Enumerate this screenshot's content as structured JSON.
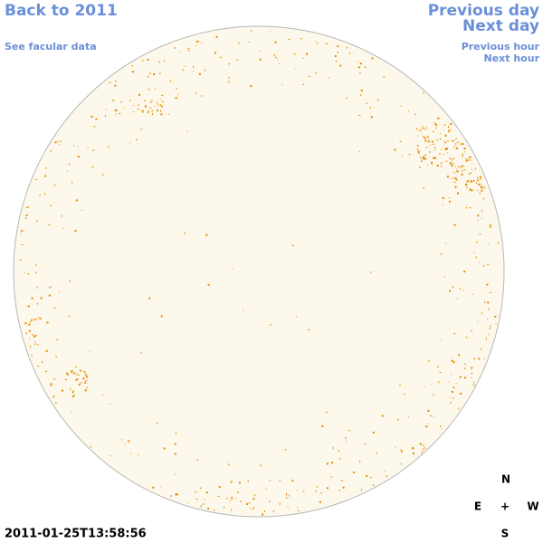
{
  "links": {
    "back": "Back to 2011",
    "facular": "See facular data",
    "previous_day": "Previous day",
    "next_day": "Next day",
    "previous_hour": "Previous hour",
    "next_hour": "Next hour"
  },
  "compass": {
    "north": "N",
    "east": "E",
    "center": "+",
    "west": "W",
    "south": "S"
  },
  "timestamp": "2011-01-25T13:58:56"
}
